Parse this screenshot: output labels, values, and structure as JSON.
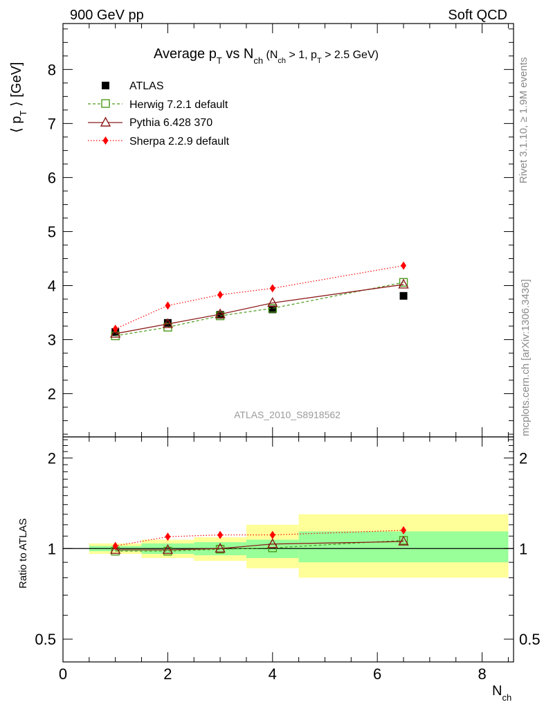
{
  "header": {
    "left": "900 GeV pp",
    "right": "Soft QCD"
  },
  "side": {
    "rivet": "Rivet 3.1.10, ≥ 1.9M events",
    "mcplots": "mcplots.cern.ch [arXiv:1306.3436]"
  },
  "chart_data": {
    "type": "scatter",
    "title": {
      "main": "Average p",
      "main_sub": "T",
      "vs": " vs N",
      "vs_sub": "ch",
      "cut1": " (N",
      "cut1_sub": "ch",
      "cut2": " > 1, p",
      "cut2_sub": "T",
      "cut3": " > 2.5 GeV)"
    },
    "watermark": "ATLAS_2010_S8918562",
    "ylabel": {
      "open": "⟨ p",
      "sub": "T",
      "close": " ⟩  [GeV]"
    },
    "xlabel": {
      "main": "N",
      "sub": "ch"
    },
    "ratio_ylabel": "Ratio to ATLAS",
    "xlim": [
      0,
      8.6
    ],
    "ylim": [
      1.2,
      8.85
    ],
    "ratio_ylim": [
      0.42,
      2.35
    ],
    "x_ticks": [
      "0",
      "2",
      "4",
      "6",
      "8"
    ],
    "y_ticks": [
      "2",
      "3",
      "4",
      "5",
      "6",
      "7",
      "8"
    ],
    "ratio_ticks": [
      "0.5",
      "1",
      "2"
    ],
    "x": [
      1,
      2,
      3,
      4,
      6.5
    ],
    "bins": [
      [
        0.5,
        1.5
      ],
      [
        1.5,
        2.5
      ],
      [
        2.5,
        3.5
      ],
      [
        3.5,
        4.5
      ],
      [
        4.5,
        8.5
      ]
    ],
    "band_inner": [
      [
        0.98,
        1.02
      ],
      [
        0.96,
        1.04
      ],
      [
        0.95,
        1.05
      ],
      [
        0.93,
        1.07
      ],
      [
        0.9,
        1.14
      ]
    ],
    "band_outer": [
      [
        0.96,
        1.04
      ],
      [
        0.93,
        1.07
      ],
      [
        0.91,
        1.09
      ],
      [
        0.86,
        1.2
      ],
      [
        0.8,
        1.3
      ]
    ],
    "series": [
      {
        "name": "ATLAS",
        "key": "atlas",
        "color": "#000000",
        "values": [
          3.14,
          3.31,
          3.46,
          3.56,
          3.81
        ],
        "ratio": [
          1,
          1,
          1,
          1,
          1
        ]
      },
      {
        "name": "Herwig 7.2.1 default",
        "key": "herwig",
        "color": "#4a9918",
        "values": [
          3.07,
          3.23,
          3.44,
          3.58,
          4.06
        ],
        "ratio": [
          0.98,
          0.98,
          0.995,
          1.005,
          1.065
        ]
      },
      {
        "name": "Pythia 6.428 370",
        "key": "pythia",
        "color": "#8b1a1a",
        "values": [
          3.11,
          3.29,
          3.47,
          3.68,
          4.02
        ],
        "ratio": [
          0.99,
          0.99,
          1.0,
          1.035,
          1.055
        ]
      },
      {
        "name": "Sherpa 2.2.9 default",
        "key": "sherpa",
        "color": "#ff0000",
        "values": [
          3.2,
          3.63,
          3.83,
          3.95,
          4.37
        ],
        "ratio": [
          1.02,
          1.095,
          1.11,
          1.11,
          1.15
        ]
      }
    ]
  }
}
